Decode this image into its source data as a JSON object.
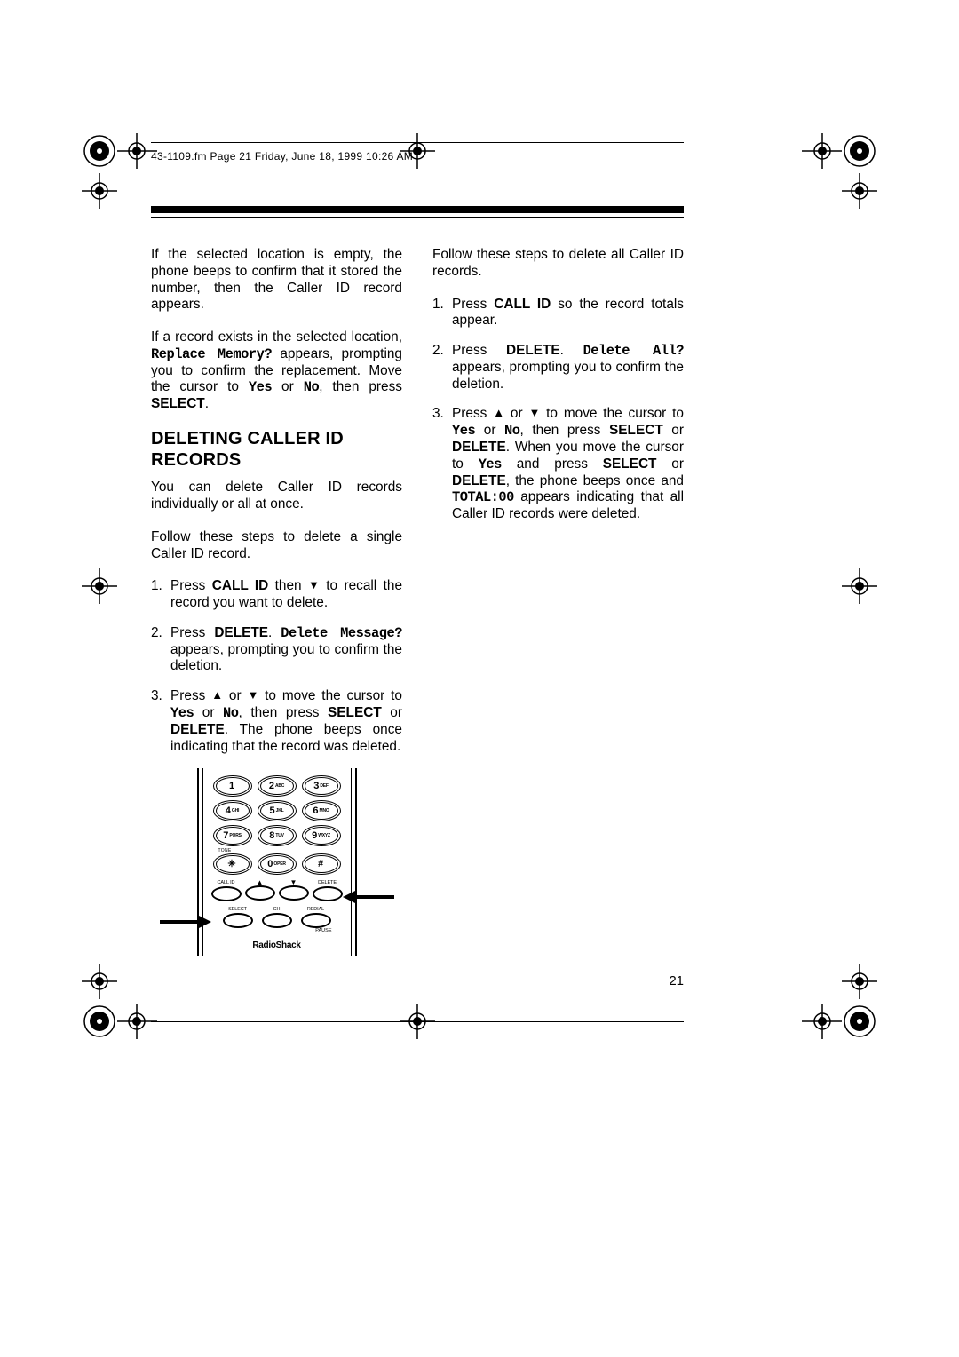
{
  "header": "43-1109.fm  Page 21  Friday, June 18, 1999  10:26 AM",
  "page_number": "21",
  "col1": {
    "p1_a": "If the selected location is empty, the phone beeps to confirm that it stored the number, then the Caller ID record appears.",
    "p2_a": "If a record exists in the selected location, ",
    "p2_mono": "Replace Memory?",
    "p2_b": " appears, prompting you to confirm the replacement. Move the cursor to ",
    "p2_yes": "Yes",
    "p2_c": " or ",
    "p2_no": "No",
    "p2_d": ", then press ",
    "p2_sel": "SELECT",
    "p2_e": ".",
    "heading": "DELETING CALLER ID RECORDS",
    "p3": "You can delete Caller ID records individually or all at once.",
    "p4": "Follow these steps to delete a single Caller ID record.",
    "s1_n": "1.",
    "s1_a": "Press ",
    "s1_b": "CALL ID",
    "s1_c": " then ",
    "s1_d": " to recall the record you want to delete.",
    "s2_n": "2.",
    "s2_a": "Press ",
    "s2_b": "DELETE",
    "s2_c": ". ",
    "s2_mono": "Delete Message?",
    "s2_d": " appears, prompting you to confirm the deletion.",
    "s3_n": "3.",
    "s3_a": "Press ",
    "s3_b": " or ",
    "s3_c": " to move the cursor to ",
    "s3_yes": "Yes",
    "s3_d": " or ",
    "s3_no": "No",
    "s3_e": ", then press ",
    "s3_sel": "SELECT",
    "s3_f": " or ",
    "s3_del": "DELETE",
    "s3_g": ". The phone beeps once indicating that the record was deleted."
  },
  "col2": {
    "p1": "Follow these steps to delete all Caller ID records.",
    "s1_n": "1.",
    "s1_a": "Press ",
    "s1_b": "CALL ID",
    "s1_c": " so the record totals appear.",
    "s2_n": "2.",
    "s2_a": "Press ",
    "s2_b": "DELETE",
    "s2_c": ". ",
    "s2_mono": "Delete All?",
    "s2_d": " appears, prompting you to confirm the deletion.",
    "s3_n": "3.",
    "s3_a": "Press ",
    "s3_b": " or ",
    "s3_c": " to move the cursor to ",
    "s3_yes": "Yes",
    "s3_d": " or ",
    "s3_no": "No",
    "s3_e": ", then press ",
    "s3_sel": "SELECT",
    "s3_f": " or ",
    "s3_del": "DELETE",
    "s3_g": ". When you move the cursor to ",
    "s3_yes2": "Yes",
    "s3_h": " and press ",
    "s3_sel2": "SELECT",
    "s3_i": " or ",
    "s3_del2": "DELETE",
    "s3_j": ", the phone beeps once and ",
    "s3_mono": "TOTAL:00",
    "s3_k": " appears indicating that all Caller ID records were deleted."
  },
  "keypad": {
    "keys": [
      [
        {
          "n": "1",
          "l": ""
        },
        {
          "n": "2",
          "l": "ABC"
        },
        {
          "n": "3",
          "l": "DEF"
        }
      ],
      [
        {
          "n": "4",
          "l": "GHI"
        },
        {
          "n": "5",
          "l": "JKL"
        },
        {
          "n": "6",
          "l": "MNO"
        }
      ],
      [
        {
          "n": "7",
          "l": "PQRS"
        },
        {
          "n": "8",
          "l": "TUV"
        },
        {
          "n": "9",
          "l": "WXYZ"
        }
      ],
      [
        {
          "n": "✳",
          "l": ""
        },
        {
          "n": "0",
          "l": "OPER"
        },
        {
          "n": "#",
          "l": ""
        }
      ]
    ],
    "tone": "TONE",
    "row1_labels": [
      "CALL ID",
      "▲",
      "▼",
      "DELETE"
    ],
    "row2_labels": [
      "SELECT",
      "CH",
      "REDIAL"
    ],
    "pause": "PAUSE",
    "brand": "RadioShack"
  },
  "colors": {
    "text": "#000000",
    "bg": "#ffffff"
  },
  "typography": {
    "body_pt": 11,
    "heading_pt": 15,
    "mono_family": "Courier"
  }
}
